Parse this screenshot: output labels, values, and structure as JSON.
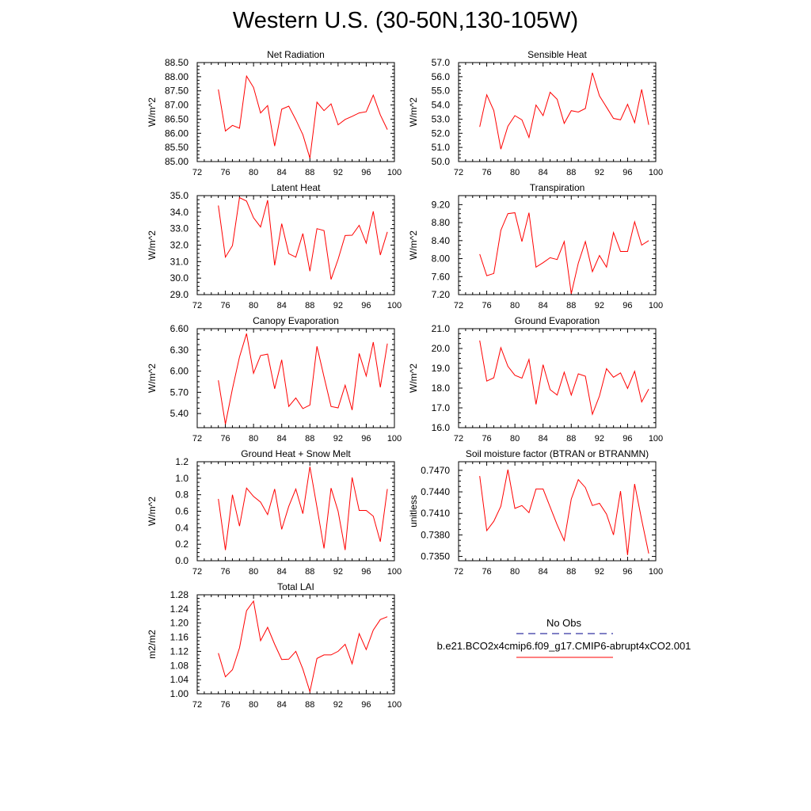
{
  "title": "Western U.S. (30-50N,130-105W)",
  "colors": {
    "model": "#ff0000",
    "obs": "#00008b",
    "axis": "#000000"
  },
  "legend": {
    "obs_label": "No Obs",
    "model_label": "b.e21.BCO2x4cmip6.f09_g17.CMIP6-abrupt4xCO2.001"
  },
  "chart_data": [
    {
      "type": "line",
      "title": "Net Radiation",
      "xlabel": "",
      "ylabel": "W/m^2",
      "xlim": [
        72,
        100
      ],
      "xticks": [
        72,
        76,
        80,
        84,
        88,
        92,
        96,
        100
      ],
      "ylim": [
        85.0,
        88.5
      ],
      "yticks": [
        85.0,
        85.5,
        86.0,
        86.5,
        87.0,
        87.5,
        88.0,
        88.5
      ],
      "ytick_labels": [
        "85.00",
        "85.50",
        "86.00",
        "86.50",
        "87.00",
        "87.50",
        "88.00",
        "88.50"
      ],
      "x": [
        75,
        76,
        77,
        78,
        79,
        80,
        81,
        82,
        83,
        84,
        85,
        86,
        87,
        88,
        89,
        90,
        91,
        92,
        93,
        94,
        95,
        96,
        97,
        98,
        99
      ],
      "values": [
        87.55,
        86.08,
        86.28,
        86.18,
        88.02,
        87.62,
        86.72,
        86.98,
        85.55,
        86.85,
        86.96,
        86.48,
        85.95,
        85.12,
        87.1,
        86.8,
        87.04,
        86.3,
        86.49,
        86.6,
        86.72,
        86.76,
        87.35,
        86.65,
        86.13
      ]
    },
    {
      "type": "line",
      "title": "Sensible Heat",
      "xlabel": "",
      "ylabel": "W/m^2",
      "xlim": [
        72,
        100
      ],
      "xticks": [
        72,
        76,
        80,
        84,
        88,
        92,
        96,
        100
      ],
      "ylim": [
        50.0,
        57.0
      ],
      "yticks": [
        50,
        51,
        52,
        53,
        54,
        55,
        56,
        57
      ],
      "ytick_labels": [
        "50.0",
        "51.0",
        "52.0",
        "53.0",
        "54.0",
        "55.0",
        "56.0",
        "57.0"
      ],
      "x": [
        75,
        76,
        77,
        78,
        79,
        80,
        81,
        82,
        83,
        84,
        85,
        86,
        87,
        88,
        89,
        90,
        91,
        92,
        93,
        94,
        95,
        96,
        97,
        98,
        99
      ],
      "values": [
        52.45,
        54.72,
        53.6,
        50.88,
        52.5,
        53.25,
        52.95,
        51.7,
        54.0,
        53.25,
        54.9,
        54.4,
        52.7,
        53.6,
        53.5,
        53.75,
        56.28,
        54.65,
        53.85,
        53.05,
        52.95,
        54.05,
        52.75,
        55.1,
        52.6
      ]
    },
    {
      "type": "line",
      "title": "Latent Heat",
      "xlabel": "",
      "ylabel": "W/m^2",
      "xlim": [
        72,
        100
      ],
      "xticks": [
        72,
        76,
        80,
        84,
        88,
        92,
        96,
        100
      ],
      "ylim": [
        29.0,
        35.0
      ],
      "yticks": [
        29,
        30,
        31,
        32,
        33,
        34,
        35
      ],
      "ytick_labels": [
        "29.0",
        "30.0",
        "31.0",
        "32.0",
        "33.0",
        "34.0",
        "35.0"
      ],
      "x": [
        75,
        76,
        77,
        78,
        79,
        80,
        81,
        82,
        83,
        84,
        85,
        86,
        87,
        88,
        89,
        90,
        91,
        92,
        93,
        94,
        95,
        96,
        97,
        98,
        99
      ],
      "values": [
        34.4,
        31.27,
        31.97,
        34.88,
        34.67,
        33.66,
        33.1,
        34.72,
        30.77,
        33.3,
        31.48,
        31.27,
        32.7,
        30.42,
        33.0,
        32.88,
        29.92,
        31.14,
        32.58,
        32.6,
        33.2,
        32.12,
        34.05,
        31.4,
        32.8
      ]
    },
    {
      "type": "line",
      "title": "Transpiration",
      "xlabel": "",
      "ylabel": "W/m^2",
      "xlim": [
        72,
        100
      ],
      "xticks": [
        72,
        76,
        80,
        84,
        88,
        92,
        96,
        100
      ],
      "ylim": [
        7.2,
        9.4
      ],
      "yticks": [
        7.2,
        7.6,
        8.0,
        8.4,
        8.8,
        9.2
      ],
      "ytick_labels": [
        "7.20",
        "7.60",
        "8.00",
        "8.40",
        "8.80",
        "9.20"
      ],
      "x": [
        75,
        76,
        77,
        78,
        79,
        80,
        81,
        82,
        83,
        84,
        85,
        86,
        87,
        88,
        89,
        90,
        91,
        92,
        93,
        94,
        95,
        96,
        97,
        98,
        99
      ],
      "values": [
        8.1,
        7.62,
        7.67,
        8.63,
        9.0,
        9.02,
        8.38,
        9.02,
        7.81,
        7.91,
        8.02,
        7.98,
        8.38,
        7.22,
        7.9,
        8.38,
        7.71,
        8.07,
        7.81,
        8.58,
        8.16,
        8.16,
        8.82,
        8.3,
        8.4
      ]
    },
    {
      "type": "line",
      "title": "Canopy Evaporation",
      "xlabel": "",
      "ylabel": "W/m^2",
      "xlim": [
        72,
        100
      ],
      "xticks": [
        72,
        76,
        80,
        84,
        88,
        92,
        96,
        100
      ],
      "ylim": [
        5.2,
        6.6
      ],
      "yticks": [
        5.4,
        5.7,
        6.0,
        6.3,
        6.6
      ],
      "ytick_labels": [
        "5.40",
        "5.70",
        "6.00",
        "6.30",
        "6.60"
      ],
      "x": [
        75,
        76,
        77,
        78,
        79,
        80,
        81,
        82,
        83,
        84,
        85,
        86,
        87,
        88,
        89,
        90,
        91,
        92,
        93,
        94,
        95,
        96,
        97,
        98,
        99
      ],
      "values": [
        5.87,
        5.25,
        5.75,
        6.2,
        6.53,
        5.97,
        6.22,
        6.24,
        5.75,
        6.16,
        5.5,
        5.62,
        5.47,
        5.52,
        6.35,
        5.92,
        5.5,
        5.48,
        5.8,
        5.45,
        6.25,
        5.93,
        6.41,
        5.77,
        6.39
      ]
    },
    {
      "type": "line",
      "title": "Ground Evaporation",
      "xlabel": "",
      "ylabel": "W/m^2",
      "xlim": [
        72,
        100
      ],
      "xticks": [
        72,
        76,
        80,
        84,
        88,
        92,
        96,
        100
      ],
      "ylim": [
        16.0,
        21.0
      ],
      "yticks": [
        16,
        17,
        18,
        19,
        20,
        21
      ],
      "ytick_labels": [
        "16.0",
        "17.0",
        "18.0",
        "19.0",
        "20.0",
        "21.0"
      ],
      "x": [
        75,
        76,
        77,
        78,
        79,
        80,
        81,
        82,
        83,
        84,
        85,
        86,
        87,
        88,
        89,
        90,
        91,
        92,
        93,
        94,
        95,
        96,
        97,
        98,
        99
      ],
      "values": [
        20.4,
        18.35,
        18.52,
        20.04,
        19.1,
        18.65,
        18.5,
        19.45,
        17.18,
        19.18,
        17.92,
        17.65,
        18.8,
        17.65,
        18.72,
        18.6,
        16.68,
        17.6,
        18.98,
        18.55,
        18.77,
        17.98,
        18.85,
        17.3,
        17.95
      ]
    },
    {
      "type": "line",
      "title": "Ground Heat + Snow Melt",
      "xlabel": "",
      "ylabel": "W/m^2",
      "xlim": [
        72,
        100
      ],
      "xticks": [
        72,
        76,
        80,
        84,
        88,
        92,
        96,
        100
      ],
      "ylim": [
        0.0,
        1.2
      ],
      "yticks": [
        0.0,
        0.2,
        0.4,
        0.6,
        0.8,
        1.0,
        1.2
      ],
      "ytick_labels": [
        "0.0",
        "0.2",
        "0.4",
        "0.6",
        "0.8",
        "1.0",
        "1.2"
      ],
      "x": [
        75,
        76,
        77,
        78,
        79,
        80,
        81,
        82,
        83,
        84,
        85,
        86,
        87,
        88,
        89,
        90,
        91,
        92,
        93,
        94,
        95,
        96,
        97,
        98,
        99
      ],
      "values": [
        0.75,
        0.13,
        0.8,
        0.42,
        0.88,
        0.78,
        0.71,
        0.56,
        0.87,
        0.38,
        0.66,
        0.87,
        0.57,
        1.14,
        0.65,
        0.15,
        0.88,
        0.6,
        0.13,
        1.01,
        0.61,
        0.61,
        0.54,
        0.23,
        0.87
      ]
    },
    {
      "type": "line",
      "title": "Soil moisture factor (BTRAN or BTRANMN)",
      "xlabel": "",
      "ylabel": "unitless",
      "xlim": [
        72,
        100
      ],
      "xticks": [
        72,
        76,
        80,
        84,
        88,
        92,
        96,
        100
      ],
      "ylim": [
        0.7344,
        0.7482
      ],
      "yticks": [
        0.735,
        0.738,
        0.741,
        0.744,
        0.747
      ],
      "ytick_labels": [
        "0.7350",
        "0.7380",
        "0.7410",
        "0.7440",
        "0.7470"
      ],
      "x": [
        75,
        76,
        77,
        78,
        79,
        80,
        81,
        82,
        83,
        84,
        85,
        86,
        87,
        88,
        89,
        90,
        91,
        92,
        93,
        94,
        95,
        96,
        97,
        98,
        99
      ],
      "values": [
        0.7462,
        0.7386,
        0.7399,
        0.742,
        0.7471,
        0.7417,
        0.7421,
        0.7411,
        0.7444,
        0.7444,
        0.7419,
        0.7394,
        0.7372,
        0.743,
        0.7457,
        0.7446,
        0.7421,
        0.7424,
        0.7409,
        0.738,
        0.7441,
        0.7352,
        0.7451,
        0.7401,
        0.7354
      ]
    },
    {
      "type": "line",
      "title": "Total LAI",
      "xlabel": "",
      "ylabel": "m2/m2",
      "xlim": [
        72,
        100
      ],
      "xticks": [
        72,
        76,
        80,
        84,
        88,
        92,
        96,
        100
      ],
      "ylim": [
        1.0,
        1.28
      ],
      "yticks": [
        1.0,
        1.04,
        1.08,
        1.12,
        1.16,
        1.2,
        1.24,
        1.28
      ],
      "ytick_labels": [
        "1.00",
        "1.04",
        "1.08",
        "1.12",
        "1.16",
        "1.20",
        "1.24",
        "1.28"
      ],
      "x": [
        75,
        76,
        77,
        78,
        79,
        80,
        81,
        82,
        83,
        84,
        85,
        86,
        87,
        88,
        89,
        90,
        91,
        92,
        93,
        94,
        95,
        96,
        97,
        98,
        99
      ],
      "values": [
        1.115,
        1.048,
        1.068,
        1.13,
        1.235,
        1.262,
        1.15,
        1.188,
        1.14,
        1.097,
        1.098,
        1.12,
        1.07,
        1.006,
        1.1,
        1.11,
        1.11,
        1.12,
        1.14,
        1.085,
        1.17,
        1.125,
        1.18,
        1.21,
        1.218
      ]
    }
  ]
}
